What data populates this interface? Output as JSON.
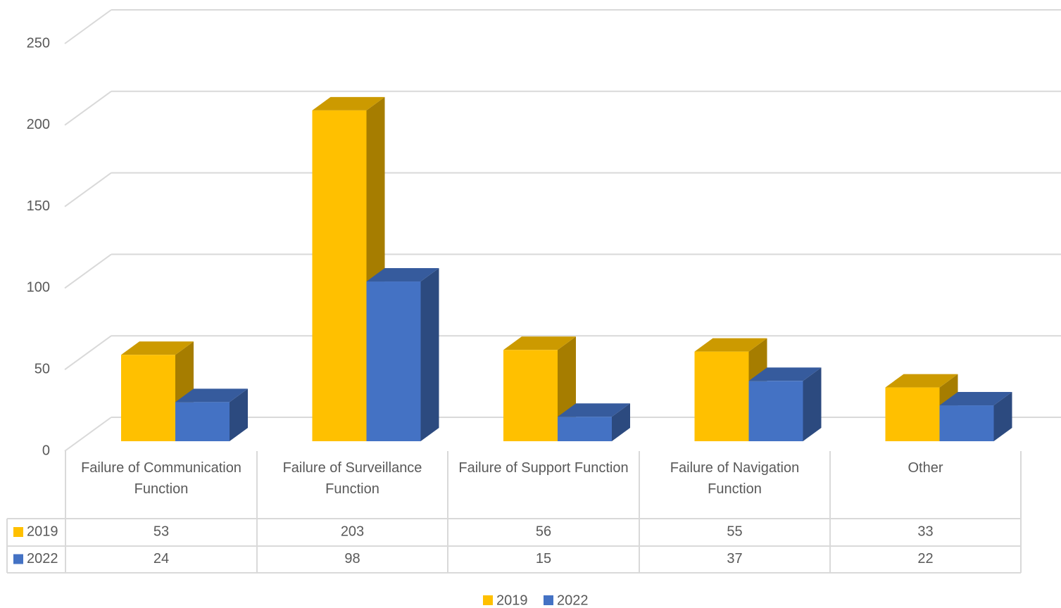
{
  "chart_data": {
    "type": "bar",
    "categories": [
      "Failure of Communication Function",
      "Failure of Surveillance Function",
      "Failure of Support Function",
      "Failure of Navigation Function",
      "Other"
    ],
    "series": [
      {
        "name": "2019",
        "color": "#FFC000",
        "values": [
          53,
          203,
          56,
          55,
          33
        ]
      },
      {
        "name": "2022",
        "color": "#4472C4",
        "values": [
          24,
          98,
          15,
          37,
          22
        ]
      }
    ],
    "ylim": [
      0,
      250
    ],
    "yticks": [
      0,
      50,
      100,
      150,
      200,
      250
    ],
    "grid": true,
    "legend": "bottom"
  }
}
